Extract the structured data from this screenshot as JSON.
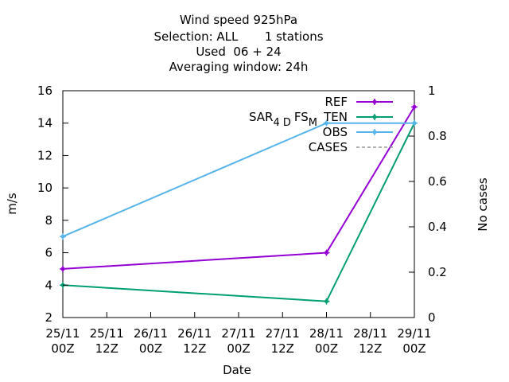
{
  "chart_data": {
    "type": "line",
    "title_lines": [
      "Wind speed 925hPa",
      "Selection: ALL       1 stations",
      "Used  06 + 24",
      "Averaging window: 24h"
    ],
    "xlabel": "Date",
    "ylabel": "m/s",
    "y2label": "No cases",
    "xlim": [
      0,
      96
    ],
    "x_ticks": [
      {
        "x": 0,
        "line1": "25/11",
        "line2": "00Z"
      },
      {
        "x": 12,
        "line1": "25/11",
        "line2": "12Z"
      },
      {
        "x": 24,
        "line1": "26/11",
        "line2": "00Z"
      },
      {
        "x": 36,
        "line1": "26/11",
        "line2": "12Z"
      },
      {
        "x": 48,
        "line1": "27/11",
        "line2": "00Z"
      },
      {
        "x": 60,
        "line1": "27/11",
        "line2": "12Z"
      },
      {
        "x": 72,
        "line1": "28/11",
        "line2": "00Z"
      },
      {
        "x": 84,
        "line1": "28/11",
        "line2": "12Z"
      },
      {
        "x": 96,
        "line1": "29/11",
        "line2": "00Z"
      }
    ],
    "ylim": [
      2,
      16
    ],
    "y_ticks": [
      2,
      4,
      6,
      8,
      10,
      12,
      14,
      16
    ],
    "y2lim": [
      0,
      1
    ],
    "y2_ticks": [
      "0",
      "0.2",
      "0.4",
      "0.6",
      "0.8",
      "1"
    ],
    "y2_tick_values": [
      0,
      0.2,
      0.4,
      0.6,
      0.8,
      1.0
    ],
    "legend_position": "top-right",
    "legend_side_label": {
      "base": "SAR",
      "sub1": "4 D",
      "mid": "FS",
      "sub2": "M"
    },
    "series": [
      {
        "name": "REF",
        "color": "#9400d3",
        "marker": "plus",
        "x": [
          0,
          72,
          96
        ],
        "y": [
          5,
          6,
          15
        ]
      },
      {
        "name": "TEN",
        "color": "#009e73",
        "marker": "plus",
        "x": [
          0,
          72,
          96
        ],
        "y": [
          4,
          3,
          14
        ]
      },
      {
        "name": "OBS",
        "color": "#56b4e9",
        "marker": "plus",
        "x": [
          0,
          72,
          96
        ],
        "y": [
          7,
          14,
          14
        ]
      },
      {
        "name": "CASES",
        "color": "#999999",
        "marker": "none",
        "dashed": true,
        "x": [],
        "y": []
      }
    ]
  }
}
